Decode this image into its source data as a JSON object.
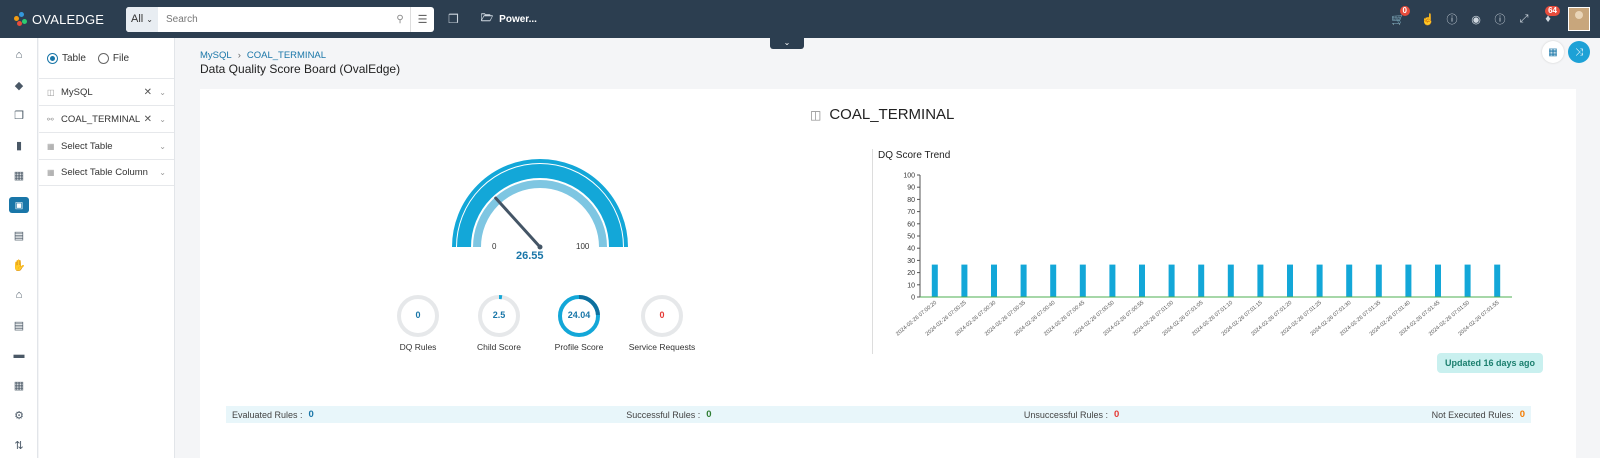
{
  "app": {
    "logo": "OVALEDGE"
  },
  "search": {
    "scope": "All",
    "placeholder": "Search"
  },
  "power": {
    "label": "Power..."
  },
  "topbar_icons": [
    {
      "name": "cart-icon",
      "badge": "0"
    },
    {
      "name": "thumbs-icon",
      "badge": ""
    },
    {
      "name": "info-icon",
      "badge": ""
    },
    {
      "name": "chrome-icon",
      "badge": ""
    },
    {
      "name": "help-icon",
      "badge": ""
    },
    {
      "name": "expand-icon",
      "badge": ""
    },
    {
      "name": "bell-icon",
      "badge": "64"
    }
  ],
  "nav": [
    "home-icon",
    "tag-icon",
    "copy-icon",
    "book-icon",
    "library-icon",
    "dashboard-icon",
    "clipboard-icon",
    "hand-icon",
    "bank-icon",
    "report-icon",
    "folder-icon",
    "calendar-icon",
    "wrench-icon",
    "settings-icon"
  ],
  "filters": {
    "radio_table": "Table",
    "radio_file": "File",
    "rows": [
      {
        "icon": "database-icon",
        "label": "MySQL",
        "clearable": true
      },
      {
        "icon": "schema-icon",
        "label": "COAL_TERMINAL",
        "clearable": true
      },
      {
        "icon": "table-icon",
        "label": "Select Table",
        "clearable": false
      },
      {
        "icon": "column-icon",
        "label": "Select Table Column",
        "clearable": false
      }
    ]
  },
  "breadcrumb": {
    "root": "MySQL",
    "current": "COAL_TERMINAL"
  },
  "page_title": "Data Quality Score Board (OvalEdge)",
  "entity": {
    "name": "COAL_TERMINAL"
  },
  "gauge": {
    "value": "26.55",
    "min": "0",
    "max": "100",
    "fraction": 0.2655
  },
  "scores": [
    {
      "value": "0",
      "label": "DQ Rules",
      "fraction": 0,
      "color": "#1976a8"
    },
    {
      "value": "2.5",
      "label": "Child Score",
      "fraction": 0.025,
      "color": "#1976a8"
    },
    {
      "value": "24.04",
      "label": "Profile Score",
      "fraction": 0.2404,
      "color": "#1976a8"
    },
    {
      "value": "0",
      "label": "Service Requests",
      "fraction": 0,
      "color": "#e53935"
    }
  ],
  "chart_data": {
    "type": "bar",
    "title": "DQ Score Trend",
    "ylim": [
      0,
      100
    ],
    "yticks": [
      "0",
      "10",
      "20",
      "30",
      "40",
      "50",
      "60",
      "70",
      "80",
      "90",
      "100"
    ],
    "categories": [
      "2024-02-26 07:00:20",
      "2024-02-26 07:00:25",
      "2024-02-26 07:00:30",
      "2024-02-26 07:00:35",
      "2024-02-26 07:00:40",
      "2024-02-26 07:00:45",
      "2024-02-26 07:00:50",
      "2024-02-26 07:00:55",
      "2024-02-26 07:01:00",
      "2024-02-26 07:01:05",
      "2024-02-26 07:01:10",
      "2024-02-26 07:01:15",
      "2024-02-26 07:01:20",
      "2024-02-26 07:01:25",
      "2024-02-26 07:01:30",
      "2024-02-26 07:01:35",
      "2024-02-26 07:01:40",
      "2024-02-26 07:01:45",
      "2024-02-26 07:01:50",
      "2024-02-26 07:01:55"
    ],
    "values": [
      26.55,
      26.55,
      26.55,
      26.55,
      26.55,
      26.55,
      26.55,
      26.55,
      26.55,
      26.55,
      26.55,
      26.55,
      26.55,
      26.55,
      26.55,
      26.55,
      26.55,
      26.55,
      26.55,
      26.55
    ],
    "bar_color": "#13a7d8",
    "baseline_color": "#4caf50"
  },
  "updated": "Updated 16 days ago",
  "summary": [
    {
      "label": "Evaluated Rules :",
      "value": "0",
      "color": "#1976a8"
    },
    {
      "label": "Successful Rules :",
      "value": "0",
      "color": "#2e7d32"
    },
    {
      "label": "Unsuccessful Rules :",
      "value": "0",
      "color": "#e53935"
    },
    {
      "label": "Not Executed Rules:",
      "value": "0",
      "color": "#f57c00"
    }
  ],
  "colors": {
    "topbar": "#2c3e50",
    "accent": "#1976a8",
    "gauge": "#13a7d8"
  }
}
